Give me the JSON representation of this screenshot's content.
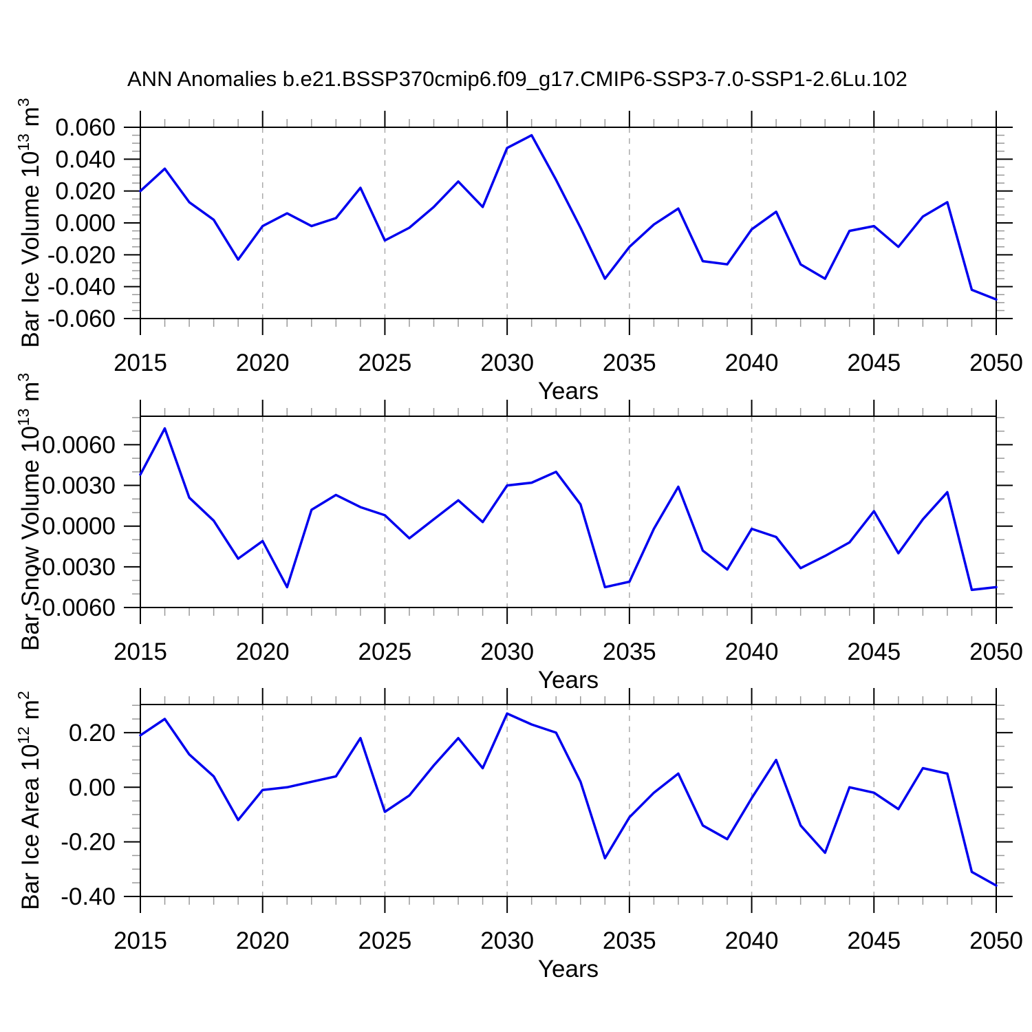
{
  "header": {
    "title": "ANN Anomalies b.e21.BSSP370cmip6.f09_g17.CMIP6-SSP3-7.0-SSP1-2.6Lu.102"
  },
  "colors": {
    "line": "#0000EE",
    "axis": "#000000",
    "minor_tick": "#999999",
    "gridline": "#AAAAAA",
    "background": "#FFFFFF"
  },
  "chart_data": [
    {
      "type": "line",
      "name": "bar-ice-volume",
      "ylabel": "Bar Ice Volume 10^13 m^3",
      "ylabel_parts": [
        {
          "t": "Bar Ice Volume 10"
        },
        {
          "t": "13",
          "sup": true
        },
        {
          "t": " m"
        },
        {
          "t": "3",
          "sup": true
        }
      ],
      "xlabel": "Years",
      "xlim": [
        2015,
        2050
      ],
      "ylim": [
        -0.06,
        0.06
      ],
      "x": [
        2015,
        2016,
        2017,
        2018,
        2019,
        2020,
        2021,
        2022,
        2023,
        2024,
        2025,
        2026,
        2027,
        2028,
        2029,
        2030,
        2031,
        2032,
        2033,
        2034,
        2035,
        2036,
        2037,
        2038,
        2039,
        2040,
        2041,
        2042,
        2043,
        2044,
        2045,
        2046,
        2047,
        2048,
        2049,
        2050
      ],
      "values": [
        0.02,
        0.034,
        0.013,
        0.002,
        -0.023,
        -0.002,
        0.006,
        -0.002,
        0.003,
        0.022,
        -0.011,
        -0.003,
        0.01,
        0.026,
        0.01,
        0.047,
        0.055,
        0.027,
        -0.003,
        -0.035,
        -0.015,
        -0.001,
        0.009,
        -0.024,
        -0.026,
        -0.004,
        0.007,
        -0.026,
        -0.035,
        -0.005,
        -0.002,
        -0.015,
        0.004,
        0.013,
        -0.042,
        -0.048
      ],
      "yticks": [
        {
          "v": 0.06,
          "label": "0.060"
        },
        {
          "v": 0.04,
          "label": "0.040"
        },
        {
          "v": 0.02,
          "label": "0.020"
        },
        {
          "v": 0.0,
          "label": "0.000"
        },
        {
          "v": -0.02,
          "label": "-0.020"
        },
        {
          "v": -0.04,
          "label": "-0.040"
        },
        {
          "v": -0.06,
          "label": "-0.060"
        }
      ],
      "y_minor_step": 0.005,
      "xticks": [
        {
          "v": 2015,
          "label": "2015"
        },
        {
          "v": 2020,
          "label": "2020"
        },
        {
          "v": 2025,
          "label": "2025"
        },
        {
          "v": 2030,
          "label": "2030"
        },
        {
          "v": 2035,
          "label": "2035"
        },
        {
          "v": 2040,
          "label": "2040"
        },
        {
          "v": 2045,
          "label": "2045"
        },
        {
          "v": 2050,
          "label": "2050"
        }
      ],
      "x_minor_step": 1,
      "x_gridlines": [
        2020,
        2025,
        2030,
        2035,
        2040,
        2045
      ],
      "grid": "vertical-dashed",
      "legend": "none"
    },
    {
      "type": "line",
      "name": "bar-snow-volume",
      "ylabel": "Bar Snow Volume 10^13 m^3",
      "ylabel_parts": [
        {
          "t": "Bar Snow Volume 10"
        },
        {
          "t": "13",
          "sup": true
        },
        {
          "t": " m"
        },
        {
          "t": "3",
          "sup": true
        }
      ],
      "xlabel": "Years",
      "xlim": [
        2015,
        2050
      ],
      "ylim": [
        -0.006,
        0.0081
      ],
      "x": [
        2015,
        2016,
        2017,
        2018,
        2019,
        2020,
        2021,
        2022,
        2023,
        2024,
        2025,
        2026,
        2027,
        2028,
        2029,
        2030,
        2031,
        2032,
        2033,
        2034,
        2035,
        2036,
        2037,
        2038,
        2039,
        2040,
        2041,
        2042,
        2043,
        2044,
        2045,
        2046,
        2047,
        2048,
        2049,
        2050
      ],
      "values": [
        0.0038,
        0.0072,
        0.0021,
        0.0004,
        -0.0024,
        -0.0011,
        -0.0045,
        0.0012,
        0.0023,
        0.0014,
        0.0008,
        -0.0009,
        0.0005,
        0.0019,
        0.0003,
        0.003,
        0.0032,
        0.004,
        0.0016,
        -0.0045,
        -0.0041,
        -0.0002,
        0.0029,
        -0.0018,
        -0.0032,
        -0.0002,
        -0.0008,
        -0.0031,
        -0.0022,
        -0.0012,
        0.0011,
        -0.002,
        0.0005,
        0.0025,
        -0.0047,
        -0.0045
      ],
      "yticks": [
        {
          "v": 0.006,
          "label": "0.0060"
        },
        {
          "v": 0.003,
          "label": "0.0030"
        },
        {
          "v": 0.0,
          "label": "0.0000"
        },
        {
          "v": -0.003,
          "label": "-0.0030"
        },
        {
          "v": -0.006,
          "label": "-0.0060"
        }
      ],
      "y_minor_step": 0.001,
      "xticks": [
        {
          "v": 2015,
          "label": "2015"
        },
        {
          "v": 2020,
          "label": "2020"
        },
        {
          "v": 2025,
          "label": "2025"
        },
        {
          "v": 2030,
          "label": "2030"
        },
        {
          "v": 2035,
          "label": "2035"
        },
        {
          "v": 2040,
          "label": "2040"
        },
        {
          "v": 2045,
          "label": "2045"
        },
        {
          "v": 2050,
          "label": "2050"
        }
      ],
      "x_minor_step": 1,
      "x_gridlines": [
        2020,
        2025,
        2030,
        2035,
        2040,
        2045
      ],
      "grid": "vertical-dashed",
      "legend": "none"
    },
    {
      "type": "line",
      "name": "bar-ice-area",
      "ylabel": "Bar Ice Area 10^12 m^2",
      "ylabel_parts": [
        {
          "t": "Bar Ice Area 10"
        },
        {
          "t": "12",
          "sup": true
        },
        {
          "t": " m"
        },
        {
          "t": "2",
          "sup": true
        }
      ],
      "xlabel": "Years",
      "xlim": [
        2015,
        2050
      ],
      "ylim": [
        -0.4,
        0.303
      ],
      "x": [
        2015,
        2016,
        2017,
        2018,
        2019,
        2020,
        2021,
        2022,
        2023,
        2024,
        2025,
        2026,
        2027,
        2028,
        2029,
        2030,
        2031,
        2032,
        2033,
        2034,
        2035,
        2036,
        2037,
        2038,
        2039,
        2040,
        2041,
        2042,
        2043,
        2044,
        2045,
        2046,
        2047,
        2048,
        2049,
        2050
      ],
      "values": [
        0.19,
        0.25,
        0.12,
        0.04,
        -0.12,
        -0.01,
        0.0,
        0.02,
        0.04,
        0.18,
        -0.09,
        -0.03,
        0.08,
        0.18,
        0.07,
        0.27,
        0.23,
        0.2,
        0.02,
        -0.26,
        -0.11,
        -0.02,
        0.05,
        -0.14,
        -0.19,
        -0.04,
        0.1,
        -0.14,
        -0.24,
        0.0,
        -0.02,
        -0.08,
        0.07,
        0.05,
        -0.31,
        -0.36
      ],
      "yticks": [
        {
          "v": 0.2,
          "label": "0.20"
        },
        {
          "v": 0.0,
          "label": "0.00"
        },
        {
          "v": -0.2,
          "label": "-0.20"
        },
        {
          "v": -0.4,
          "label": "-0.40"
        }
      ],
      "y_minor_step": 0.05,
      "xticks": [
        {
          "v": 2015,
          "label": "2015"
        },
        {
          "v": 2020,
          "label": "2020"
        },
        {
          "v": 2025,
          "label": "2025"
        },
        {
          "v": 2030,
          "label": "2030"
        },
        {
          "v": 2035,
          "label": "2035"
        },
        {
          "v": 2040,
          "label": "2040"
        },
        {
          "v": 2045,
          "label": "2045"
        },
        {
          "v": 2050,
          "label": "2050"
        }
      ],
      "x_minor_step": 1,
      "x_gridlines": [
        2020,
        2025,
        2030,
        2035,
        2040,
        2045
      ],
      "grid": "vertical-dashed",
      "legend": "none"
    }
  ]
}
